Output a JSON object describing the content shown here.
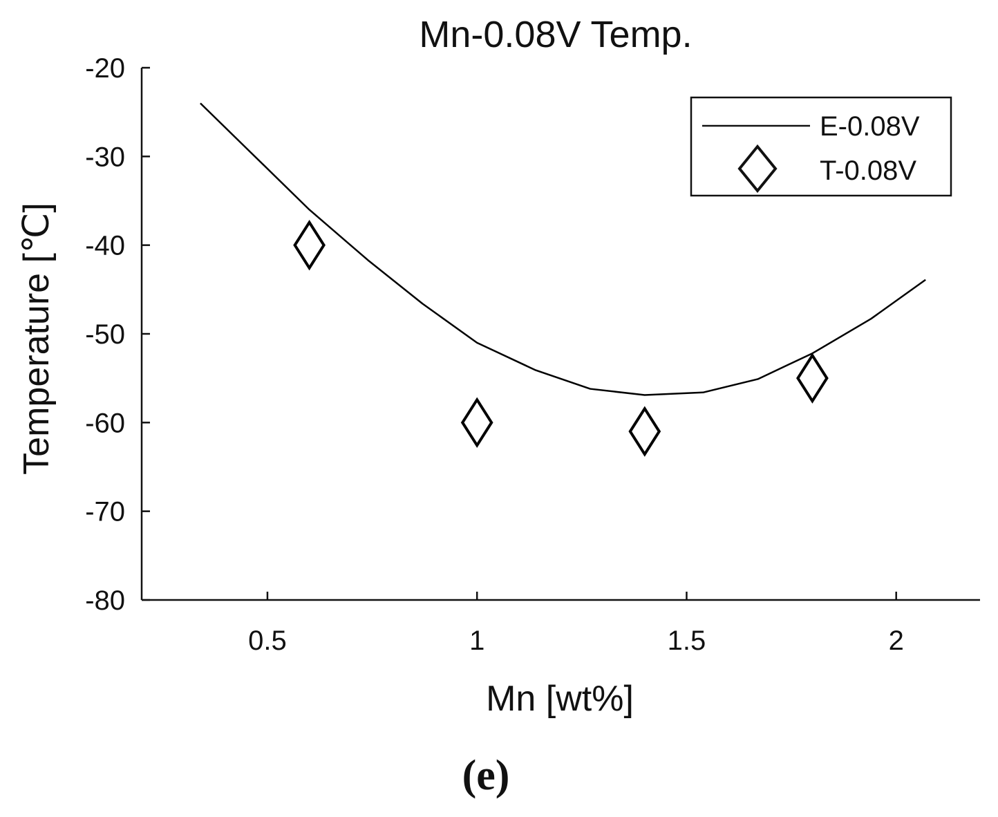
{
  "chart_data": {
    "type": "line",
    "title": "Mn-0.08V Temp.",
    "xlabel": "Mn [wt%]",
    "ylabel": "Temperature [℃]",
    "xlim": [
      0.2,
      2.2
    ],
    "ylim": [
      -80,
      -20
    ],
    "xticks": [
      0.5,
      1,
      1.5,
      2
    ],
    "xtick_labels": [
      "0.5",
      "1",
      "1.5",
      "2"
    ],
    "yticks": [
      -20,
      -30,
      -40,
      -50,
      -60,
      -70,
      -80
    ],
    "ytick_labels": [
      "-20",
      "-30",
      "-40",
      "-50",
      "-60",
      "-70",
      "-80"
    ],
    "grid": false,
    "legend_position": "top-right",
    "series": [
      {
        "name": "E-0.08V",
        "style": "line",
        "color": "#000000",
        "x": [
          0.34,
          0.47,
          0.6,
          0.74,
          0.87,
          1.0,
          1.14,
          1.27,
          1.4,
          1.54,
          1.67,
          1.8,
          1.94,
          2.07
        ],
        "y": [
          -24,
          -30,
          -36,
          -41.7,
          -46.6,
          -51,
          -54.1,
          -56.2,
          -56.9,
          -56.6,
          -55.1,
          -52.2,
          -48.3,
          -43.9
        ]
      },
      {
        "name": "T-0.08V",
        "style": "marker",
        "marker": "diamond",
        "color": "#000000",
        "x": [
          0.6,
          1.0,
          1.4,
          1.8
        ],
        "y": [
          -40,
          -60,
          -61,
          -55
        ]
      }
    ],
    "panel_label": "(e)"
  }
}
